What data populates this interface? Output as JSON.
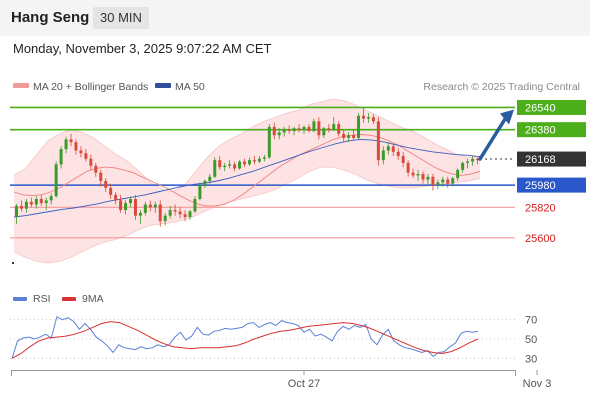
{
  "header": {
    "instrument": "Hang Seng",
    "timeframe": "30 MIN",
    "timestamp": "Monday, November 3, 2025 9:07:22 AM CET"
  },
  "legend": {
    "ma20_label": "MA 20 + Bollinger Bands",
    "ma50_label": "MA 50",
    "credit": "Research © 2025 Trading Central",
    "rsi_label": "RSI",
    "rsi_ma_label": "9MA"
  },
  "colors": {
    "resistance": "#4caf1a",
    "support": "#f29a9a",
    "pivot": "#2a57c9",
    "current": "#333333",
    "bollinger_fill": "#fde3e3",
    "ma20": "#f08080",
    "ma50": "#3a5cc0",
    "arrow": "#2a5d9f",
    "rsi": "#5a80d8",
    "rsi_ma": "#d93030",
    "candle_up": "#3a9a2a",
    "candle_down": "#d94a3a"
  },
  "chart_data": [
    {
      "type": "candlestick",
      "title": "Hang Seng",
      "ylim": [
        25310,
        26630
      ],
      "levels": [
        {
          "value": 26540,
          "label": "26540",
          "kind": "resistance"
        },
        {
          "value": 26380,
          "label": "26380",
          "kind": "resistance"
        },
        {
          "value": 26168,
          "label": "26168",
          "kind": "current"
        },
        {
          "value": 25980,
          "label": "25980",
          "kind": "pivot"
        },
        {
          "value": 25820,
          "label": "25820",
          "kind": "support"
        },
        {
          "value": 25600,
          "label": "25600",
          "kind": "support"
        }
      ],
      "x_ticks": [
        {
          "index": 58,
          "label": "Oct 27"
        },
        {
          "index": 105,
          "label": "Nov 3"
        }
      ],
      "candles": [
        [
          25755,
          25845,
          25700,
          25830
        ],
        [
          25830,
          25870,
          25790,
          25810
        ],
        [
          25810,
          25880,
          25780,
          25860
        ],
        [
          25860,
          25890,
          25820,
          25840
        ],
        [
          25840,
          25900,
          25810,
          25880
        ],
        [
          25880,
          25910,
          25830,
          25850
        ],
        [
          25850,
          25890,
          25800,
          25870
        ],
        [
          25870,
          25920,
          25840,
          25900
        ],
        [
          25900,
          26150,
          25890,
          26130
        ],
        [
          26130,
          26260,
          26100,
          26240
        ],
        [
          26240,
          26330,
          26210,
          26310
        ],
        [
          26310,
          26350,
          26260,
          26290
        ],
        [
          26290,
          26310,
          26200,
          26230
        ],
        [
          26230,
          26260,
          26180,
          26210
        ],
        [
          26210,
          26240,
          26150,
          26170
        ],
        [
          26170,
          26200,
          26090,
          26120
        ],
        [
          26120,
          26140,
          26040,
          26070
        ],
        [
          26070,
          26090,
          25970,
          26010
        ],
        [
          26010,
          26030,
          25930,
          25960
        ],
        [
          25960,
          25990,
          25880,
          25910
        ],
        [
          25910,
          25930,
          25840,
          25870
        ],
        [
          25870,
          25910,
          25780,
          25800
        ],
        [
          25800,
          25870,
          25770,
          25850
        ],
        [
          25850,
          25900,
          25820,
          25880
        ],
        [
          25880,
          25910,
          25730,
          25760
        ],
        [
          25760,
          25800,
          25700,
          25780
        ],
        [
          25780,
          25860,
          25760,
          25840
        ],
        [
          25840,
          25870,
          25790,
          25820
        ],
        [
          25820,
          25860,
          25780,
          25840
        ],
        [
          25840,
          25870,
          25680,
          25720
        ],
        [
          25720,
          25780,
          25690,
          25760
        ],
        [
          25760,
          25830,
          25740,
          25800
        ],
        [
          25800,
          25840,
          25760,
          25790
        ],
        [
          25790,
          25820,
          25740,
          25770
        ],
        [
          25770,
          25800,
          25720,
          25750
        ],
        [
          25750,
          25800,
          25730,
          25790
        ],
        [
          25790,
          25900,
          25780,
          25880
        ],
        [
          25880,
          26000,
          25870,
          25980
        ],
        [
          25980,
          26020,
          25960,
          26010
        ],
        [
          26010,
          26060,
          25990,
          26040
        ],
        [
          26040,
          26180,
          26030,
          26160
        ],
        [
          26160,
          26190,
          26090,
          26110
        ],
        [
          26110,
          26140,
          26080,
          26120
        ],
        [
          26120,
          26160,
          26100,
          26130
        ],
        [
          26130,
          26150,
          26080,
          26100
        ],
        [
          26100,
          26160,
          26090,
          26150
        ],
        [
          26150,
          26170,
          26110,
          26130
        ],
        [
          26130,
          26180,
          26120,
          26160
        ],
        [
          26160,
          26190,
          26130,
          26150
        ],
        [
          26150,
          26190,
          26140,
          26170
        ],
        [
          26170,
          26200,
          26150,
          26180
        ],
        [
          26180,
          26420,
          26170,
          26400
        ],
        [
          26400,
          26430,
          26310,
          26340
        ],
        [
          26340,
          26390,
          26310,
          26360
        ],
        [
          26360,
          26400,
          26330,
          26380
        ],
        [
          26380,
          26410,
          26350,
          26370
        ],
        [
          26370,
          26400,
          26340,
          26390
        ],
        [
          26390,
          26420,
          26360,
          26380
        ],
        [
          26380,
          26410,
          26350,
          26400
        ],
        [
          26400,
          26420,
          26360,
          26370
        ],
        [
          26370,
          26460,
          26360,
          26440
        ],
        [
          26440,
          26470,
          26310,
          26340
        ],
        [
          26340,
          26400,
          26320,
          26390
        ],
        [
          26390,
          26420,
          26360,
          26380
        ],
        [
          26380,
          26470,
          26370,
          26420
        ],
        [
          26420,
          26440,
          26330,
          26350
        ],
        [
          26350,
          26380,
          26290,
          26320
        ],
        [
          26320,
          26360,
          26290,
          26340
        ],
        [
          26340,
          26380,
          26300,
          26320
        ],
        [
          26320,
          26500,
          26310,
          26480
        ],
        [
          26480,
          26540,
          26430,
          26460
        ],
        [
          26460,
          26500,
          26430,
          26470
        ],
        [
          26470,
          26490,
          26420,
          26440
        ],
        [
          26440,
          26470,
          26120,
          26160
        ],
        [
          26160,
          26260,
          26130,
          26230
        ],
        [
          26230,
          26290,
          26200,
          26260
        ],
        [
          26260,
          26280,
          26190,
          26220
        ],
        [
          26220,
          26250,
          26160,
          26190
        ],
        [
          26190,
          26220,
          26110,
          26140
        ],
        [
          26140,
          26160,
          26040,
          26070
        ],
        [
          26070,
          26100,
          26030,
          26050
        ],
        [
          26050,
          26090,
          26010,
          26060
        ],
        [
          26060,
          26080,
          25990,
          26020
        ],
        [
          26020,
          26060,
          25980,
          26040
        ],
        [
          26040,
          26060,
          25940,
          25980
        ],
        [
          25980,
          26020,
          25950,
          26000
        ],
        [
          26000,
          26040,
          25970,
          26020
        ],
        [
          26020,
          26040,
          25960,
          25990
        ],
        [
          25990,
          26040,
          25970,
          26030
        ],
        [
          26030,
          26100,
          26010,
          26090
        ],
        [
          26090,
          26150,
          26070,
          26140
        ],
        [
          26140,
          26170,
          26100,
          26150
        ],
        [
          26150,
          26190,
          26120,
          26170
        ],
        [
          26170,
          26180,
          26130,
          26160
        ]
      ],
      "series": [
        {
          "name": "MA 20 + Bollinger Bands",
          "values_role": "middle band",
          "values": [
            25930,
            25910,
            25905,
            25910,
            25930,
            25960,
            26000,
            26040,
            26080,
            26100,
            26110,
            26105,
            26090,
            26070,
            26040,
            26010,
            25980,
            25950,
            25910,
            25875,
            25845,
            25830,
            25830,
            25840,
            25870,
            25910,
            25960,
            26010,
            26060,
            26110,
            26150,
            26190,
            26220,
            26250,
            26280,
            26310,
            26330,
            26340,
            26345,
            26340,
            26325,
            26300,
            26270,
            26230,
            26190,
            26150,
            26110,
            26080,
            26060,
            26050,
            26060,
            26080
          ]
        },
        {
          "name": "MA 50",
          "values": [
            25750,
            25760,
            25775,
            25790,
            25805,
            25815,
            25830,
            25845,
            25865,
            25880,
            25895,
            25910,
            25930,
            25950,
            25970,
            25985,
            25995,
            26010,
            26030,
            26055,
            26080,
            26110,
            26140,
            26170,
            26200,
            26230,
            26255,
            26280,
            26300,
            26310,
            26305,
            26290,
            26270,
            26250,
            26235,
            26220,
            26210,
            26200,
            26195,
            26185
          ]
        }
      ],
      "bollinger": {
        "upper": [
          26050,
          26100,
          26200,
          26300,
          26350,
          26380,
          26360,
          26320,
          26260,
          26200,
          26150,
          26080,
          26000,
          25950,
          25930,
          25980,
          26080,
          26180,
          26260,
          26310,
          26350,
          26400,
          26440,
          26470,
          26500,
          26520,
          26560,
          26580,
          26600,
          26590,
          26560,
          26520,
          26480,
          26440,
          26400,
          26370,
          26330,
          26280,
          26240,
          26200,
          26180,
          26190
        ],
        "lower": [
          25500,
          25460,
          25430,
          25420,
          25430,
          25460,
          25500,
          25540,
          25570,
          25590,
          25620,
          25660,
          25690,
          25700,
          25710,
          25730,
          25760,
          25800,
          25830,
          25860,
          25880,
          25900,
          25920,
          25950,
          25990,
          26030,
          26080,
          26110,
          26110,
          26090,
          26060,
          26020,
          25990,
          25970,
          25960,
          25960,
          25970,
          25980,
          25990,
          26000,
          26010,
          26030
        ]
      },
      "forecast_arrow": {
        "from": 26168,
        "to": 26540
      }
    },
    {
      "type": "line",
      "title": "RSI",
      "ylim": [
        20,
        80
      ],
      "yticks": [
        70,
        50,
        30
      ],
      "series": [
        {
          "name": "RSI",
          "values": [
            30,
            48,
            51,
            52,
            50,
            52,
            55,
            51,
            73,
            70,
            72,
            68,
            60,
            66,
            60,
            52,
            48,
            43,
            36,
            44,
            41,
            40,
            39,
            42,
            40,
            41,
            44,
            42,
            44,
            52,
            57,
            49,
            53,
            62,
            55,
            54,
            58,
            59,
            61,
            60,
            61,
            62,
            66,
            67,
            62,
            65,
            67,
            64,
            69,
            67,
            66,
            64,
            57,
            60,
            53,
            55,
            52,
            48,
            58,
            63,
            60,
            64,
            62,
            65,
            50,
            44,
            54,
            60,
            48,
            44,
            41,
            40,
            38,
            36,
            38,
            32,
            36,
            37,
            42,
            46,
            56,
            58,
            57,
            58
          ]
        },
        {
          "name": "9MA",
          "values": [
            30,
            35,
            42,
            48,
            51,
            52,
            53,
            55,
            58,
            62,
            66,
            68,
            67,
            63,
            59,
            54,
            49,
            45,
            42,
            41,
            40,
            41,
            41,
            41,
            42,
            43,
            46,
            50,
            53,
            56,
            58,
            59,
            61,
            63,
            64,
            65,
            66,
            67,
            66,
            64,
            61,
            57,
            53,
            49,
            45,
            41,
            38,
            36,
            35,
            37,
            41,
            46,
            50
          ]
        }
      ]
    }
  ]
}
